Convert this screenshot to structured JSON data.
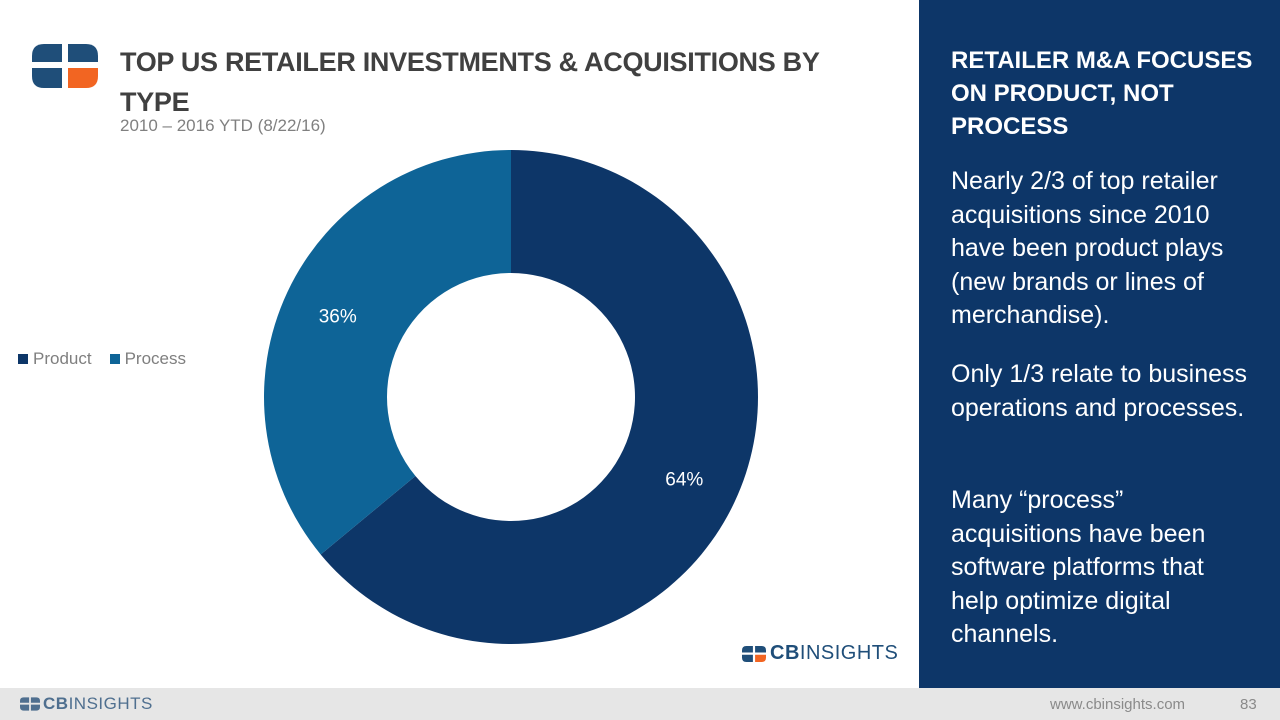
{
  "header": {
    "title": "TOP US RETAILER INVESTMENTS & ACQUISITIONS BY TYPE",
    "subtitle": "2010 – 2016 YTD (8/22/16)"
  },
  "chart_data": {
    "type": "pie",
    "donut": true,
    "categories": [
      "Product",
      "Process"
    ],
    "values": [
      64,
      36
    ],
    "labels": [
      "64%",
      "36%"
    ],
    "colors": [
      "#0d3668",
      "#0e6497"
    ],
    "legend_position": "left"
  },
  "brand": {
    "cb_bold": "CB",
    "cb_rest": "INSIGHTS"
  },
  "sidebar": {
    "title": "RETAILER M&A FOCUSES ON PRODUCT, NOT PROCESS",
    "paragraphs": [
      "Nearly 2/3 of top retailer acquisitions since 2010 have been product plays (new brands or lines of merchandise).",
      "Only 1/3 relate to business operations and processes.",
      "Many “process” acquisitions have been software platforms that help optimize digital channels."
    ]
  },
  "footer": {
    "url": "www.cbinsights.com",
    "page": "83"
  },
  "colors": {
    "navy": "#0d3668",
    "orange": "#f26522",
    "panel_bg": "#0d3668",
    "footer_bg": "#e6e6e6"
  }
}
